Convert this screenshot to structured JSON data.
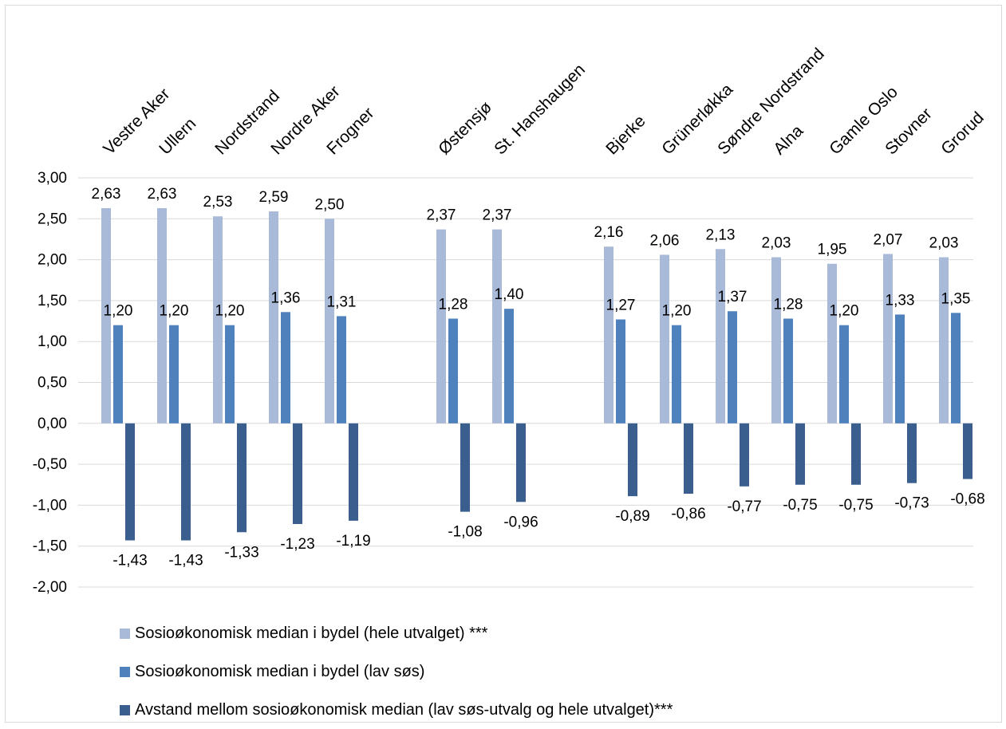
{
  "chart_data": {
    "type": "bar",
    "categories": [
      "Vestre Aker",
      "Ullern",
      "Nordstrand",
      "Nordre Aker",
      "Frogner",
      "Østensjø",
      "St. Hanshaugen",
      "Bjerke",
      "Grünerløkka",
      "Søndre Nordstrand",
      "Alna",
      "Gamle Oslo",
      "Stovner",
      "Grorud"
    ],
    "series": [
      {
        "name": "Sosioøkonomisk median i bydel (hele utvalget) ***",
        "color": "#a9b9d8",
        "values": [
          2.63,
          2.63,
          2.53,
          2.59,
          2.5,
          2.37,
          2.37,
          2.16,
          2.06,
          2.13,
          2.03,
          1.95,
          2.07,
          2.03
        ],
        "labels": [
          "2,63",
          "2,63",
          "2,53",
          "2,59",
          "2,50",
          "2,37",
          "2,37",
          "2,16",
          "2,06",
          "2,13",
          "2,03",
          "1,95",
          "2,07",
          "2,03"
        ]
      },
      {
        "name": "Sosioøkonomisk median i bydel (lav søs)",
        "color": "#4f81bd",
        "values": [
          1.2,
          1.2,
          1.2,
          1.36,
          1.31,
          1.28,
          1.4,
          1.27,
          1.2,
          1.37,
          1.28,
          1.2,
          1.33,
          1.35
        ],
        "labels": [
          "1,20",
          "1,20",
          "1,20",
          "1,36",
          "1,31",
          "1,28",
          "1,40",
          "1,27",
          "1,20",
          "1,37",
          "1,28",
          "1,20",
          "1,33",
          "1,35"
        ]
      },
      {
        "name": "Avstand mellom sosioøkonomisk median (lav søs-utvalg og hele utvalget)***",
        "color": "#3a5f8f",
        "values": [
          -1.43,
          -1.43,
          -1.33,
          -1.23,
          -1.19,
          -1.08,
          -0.96,
          -0.89,
          -0.86,
          -0.77,
          -0.75,
          -0.75,
          -0.73,
          -0.68
        ],
        "labels": [
          "-1,43",
          "-1,43",
          "-1,33",
          "-1,23",
          "-1,19",
          "-1,08",
          "-0,96",
          "-0,89",
          "-0,86",
          "-0,77",
          "-0,75",
          "-0,75",
          "-0,73",
          "-0,68"
        ]
      }
    ],
    "ylim": [
      -2.0,
      3.0
    ],
    "yticks": [
      3.0,
      2.5,
      2.0,
      1.5,
      1.0,
      0.5,
      0.0,
      -0.5,
      -1.0,
      -1.5,
      -2.0
    ],
    "ytick_labels": [
      "3,00",
      "2,50",
      "2,00",
      "1,50",
      "1,00",
      "0,50",
      "0,00",
      "-0,50",
      "-1,00",
      "-1,50",
      "-2,00"
    ],
    "grid": true,
    "legend_position": "bottom"
  }
}
